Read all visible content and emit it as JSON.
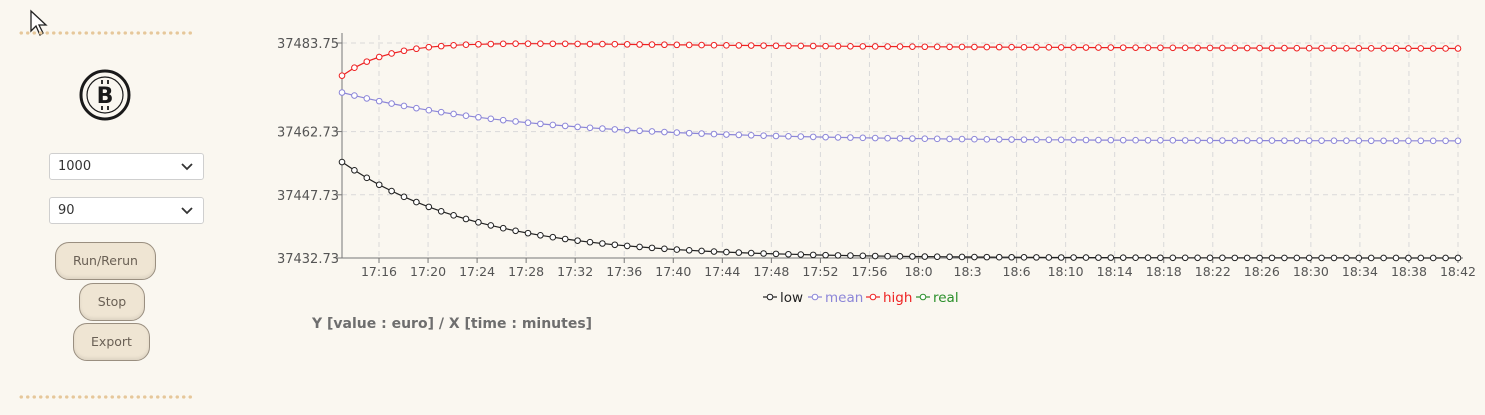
{
  "sidebar": {
    "amount_select": {
      "value": "1000"
    },
    "period_select": {
      "value": "90"
    },
    "buttons": {
      "run": "Run/Rerun",
      "stop": "Stop",
      "export": "Export"
    }
  },
  "axis_caption": "Y [value : euro] / X [time : minutes]",
  "icons": {
    "logo": "bitcoin-logo-icon",
    "chevron": "chevron-down-icon",
    "cursor": "mouse-pointer-icon"
  },
  "chart_data": {
    "type": "line",
    "title": "",
    "xlabel": "",
    "ylabel": "",
    "grid": true,
    "legend_position": "bottom-center",
    "ylim": [
      37432.73,
      37483.75
    ],
    "y_ticks": [
      "37483.75",
      "37462.73",
      "37447.73",
      "37432.73"
    ],
    "x_ticks": [
      "17:16",
      "17:20",
      "17:24",
      "17:28",
      "17:32",
      "17:36",
      "17:40",
      "17:44",
      "17:48",
      "17:52",
      "17:56",
      "18:0",
      "18:3",
      "18:6",
      "18:10",
      "18:14",
      "18:18",
      "18:22",
      "18:26",
      "18:30",
      "18:34",
      "18:38",
      "18:42"
    ],
    "n_points": 91,
    "series": [
      {
        "name": "low",
        "color": "#222222",
        "start": 37455.5,
        "end": 37432.73,
        "rate": 0.09,
        "values": []
      },
      {
        "name": "mean",
        "color": "#8c86d8",
        "start": 37472.0,
        "end": 37460.5,
        "rate": 0.065,
        "values": []
      },
      {
        "name": "high",
        "color": "#ee2222",
        "start": 37476.0,
        "end": 37482.3,
        "rate": 0.25,
        "peak": 37484.6,
        "values": []
      },
      {
        "name": "real",
        "color": "#2a8f2a",
        "values": []
      }
    ]
  }
}
